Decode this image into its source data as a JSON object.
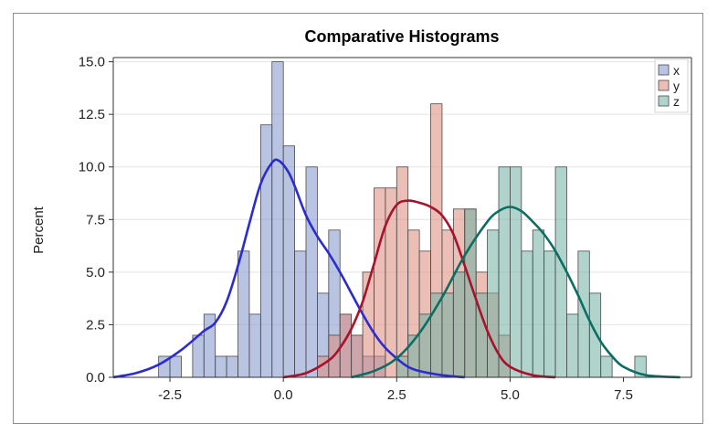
{
  "chart_data": {
    "type": "histogram",
    "title": "Comparative Histograms",
    "xlabel": "",
    "ylabel": "Percent",
    "xlim": [
      -3.75,
      9.0
    ],
    "ylim": [
      0,
      15.2
    ],
    "xticks": [
      -2.5,
      0.0,
      2.5,
      5.0,
      7.5
    ],
    "xtick_labels": [
      "-2.5",
      "0.0",
      "2.5",
      "5.0",
      "7.5"
    ],
    "yticks": [
      0,
      2.5,
      5.0,
      7.5,
      10.0,
      12.5,
      15.0
    ],
    "ytick_labels": [
      "0.0",
      "2.5",
      "5.0",
      "7.5",
      "10.0",
      "12.5",
      "15.0"
    ],
    "grid": "horizontal",
    "legend_position": "top-right",
    "bin_width": 0.25,
    "series": [
      {
        "name": "x",
        "fill": "#7f93cc",
        "curve_color": "#2b2bd0",
        "bins": [
          {
            "start": -2.75,
            "value": 1
          },
          {
            "start": -2.5,
            "value": 1
          },
          {
            "start": -2.0,
            "value": 2
          },
          {
            "start": -1.75,
            "value": 3
          },
          {
            "start": -1.5,
            "value": 1
          },
          {
            "start": -1.25,
            "value": 1
          },
          {
            "start": -1.0,
            "value": 6
          },
          {
            "start": -0.75,
            "value": 3
          },
          {
            "start": -0.5,
            "value": 12
          },
          {
            "start": -0.25,
            "value": 15
          },
          {
            "start": 0.0,
            "value": 11
          },
          {
            "start": 0.25,
            "value": 6
          },
          {
            "start": 0.5,
            "value": 10
          },
          {
            "start": 0.75,
            "value": 4
          },
          {
            "start": 1.0,
            "value": 7
          },
          {
            "start": 1.25,
            "value": 3
          },
          {
            "start": 1.5,
            "value": 2
          },
          {
            "start": 1.75,
            "value": 1
          },
          {
            "start": 2.0,
            "value": 1
          }
        ],
        "density": [
          [
            -3.75,
            0
          ],
          [
            -3.25,
            0.2
          ],
          [
            -2.75,
            0.6
          ],
          [
            -2.25,
            1.3
          ],
          [
            -1.75,
            2.2
          ],
          [
            -1.5,
            2.6
          ],
          [
            -1.25,
            3.6
          ],
          [
            -1.0,
            5.3
          ],
          [
            -0.75,
            7.3
          ],
          [
            -0.5,
            9.2
          ],
          [
            -0.25,
            10.2
          ],
          [
            -0.1,
            10.3
          ],
          [
            0.1,
            9.8
          ],
          [
            0.25,
            9.1
          ],
          [
            0.5,
            7.7
          ],
          [
            0.75,
            6.7
          ],
          [
            1.0,
            5.9
          ],
          [
            1.25,
            5.0
          ],
          [
            1.5,
            4.0
          ],
          [
            1.75,
            3.0
          ],
          [
            2.0,
            2.1
          ],
          [
            2.25,
            1.4
          ],
          [
            2.5,
            0.9
          ],
          [
            2.75,
            0.5
          ],
          [
            3.0,
            0.3
          ],
          [
            3.5,
            0.1
          ],
          [
            4.0,
            0
          ]
        ]
      },
      {
        "name": "y",
        "fill": "#dd8a7a",
        "curve_color": "#a8122c",
        "bins": [
          {
            "start": 0.75,
            "value": 1
          },
          {
            "start": 1.0,
            "value": 2
          },
          {
            "start": 1.25,
            "value": 3
          },
          {
            "start": 1.5,
            "value": 2
          },
          {
            "start": 1.75,
            "value": 5
          },
          {
            "start": 2.0,
            "value": 9
          },
          {
            "start": 2.25,
            "value": 9
          },
          {
            "start": 2.5,
            "value": 10
          },
          {
            "start": 2.75,
            "value": 7
          },
          {
            "start": 3.0,
            "value": 6
          },
          {
            "start": 3.25,
            "value": 13
          },
          {
            "start": 3.5,
            "value": 7
          },
          {
            "start": 3.75,
            "value": 8
          },
          {
            "start": 4.0,
            "value": 8
          },
          {
            "start": 4.25,
            "value": 5
          },
          {
            "start": 4.5,
            "value": 4
          },
          {
            "start": 4.75,
            "value": 2
          }
        ],
        "density": [
          [
            0,
            0
          ],
          [
            0.5,
            0.2
          ],
          [
            1.0,
            0.8
          ],
          [
            1.25,
            1.4
          ],
          [
            1.5,
            2.3
          ],
          [
            1.75,
            3.6
          ],
          [
            2.0,
            5.4
          ],
          [
            2.25,
            7.2
          ],
          [
            2.5,
            8.2
          ],
          [
            2.75,
            8.4
          ],
          [
            3.0,
            8.3
          ],
          [
            3.25,
            8.1
          ],
          [
            3.5,
            7.7
          ],
          [
            3.75,
            6.8
          ],
          [
            4.0,
            5.3
          ],
          [
            4.25,
            3.7
          ],
          [
            4.5,
            2.2
          ],
          [
            4.75,
            1.1
          ],
          [
            5.0,
            0.5
          ],
          [
            5.5,
            0.1
          ],
          [
            6.0,
            0
          ]
        ]
      },
      {
        "name": "z",
        "fill": "#6fb0a2",
        "curve_color": "#0b6e62",
        "bins": [
          {
            "start": 2.5,
            "value": 1
          },
          {
            "start": 2.75,
            "value": 2
          },
          {
            "start": 3.0,
            "value": 3
          },
          {
            "start": 3.25,
            "value": 4
          },
          {
            "start": 3.5,
            "value": 4
          },
          {
            "start": 3.75,
            "value": 5
          },
          {
            "start": 4.0,
            "value": 8
          },
          {
            "start": 4.25,
            "value": 4
          },
          {
            "start": 4.5,
            "value": 7
          },
          {
            "start": 4.75,
            "value": 10
          },
          {
            "start": 5.0,
            "value": 10
          },
          {
            "start": 5.25,
            "value": 6
          },
          {
            "start": 5.5,
            "value": 7
          },
          {
            "start": 5.75,
            "value": 6
          },
          {
            "start": 6.0,
            "value": 10
          },
          {
            "start": 6.25,
            "value": 3
          },
          {
            "start": 6.5,
            "value": 6
          },
          {
            "start": 6.75,
            "value": 4
          },
          {
            "start": 7.0,
            "value": 1
          },
          {
            "start": 7.75,
            "value": 1
          }
        ],
        "density": [
          [
            1.5,
            0
          ],
          [
            2.0,
            0.3
          ],
          [
            2.5,
            0.9
          ],
          [
            3.0,
            2.1
          ],
          [
            3.5,
            3.8
          ],
          [
            4.0,
            5.8
          ],
          [
            4.5,
            7.4
          ],
          [
            4.75,
            7.9
          ],
          [
            5.0,
            8.1
          ],
          [
            5.25,
            7.9
          ],
          [
            5.5,
            7.4
          ],
          [
            5.75,
            6.8
          ],
          [
            6.0,
            6.0
          ],
          [
            6.25,
            5.0
          ],
          [
            6.5,
            3.9
          ],
          [
            6.75,
            2.7
          ],
          [
            7.0,
            1.7
          ],
          [
            7.25,
            1.0
          ],
          [
            7.5,
            0.5
          ],
          [
            8.0,
            0.1
          ],
          [
            8.75,
            0
          ]
        ]
      }
    ]
  }
}
